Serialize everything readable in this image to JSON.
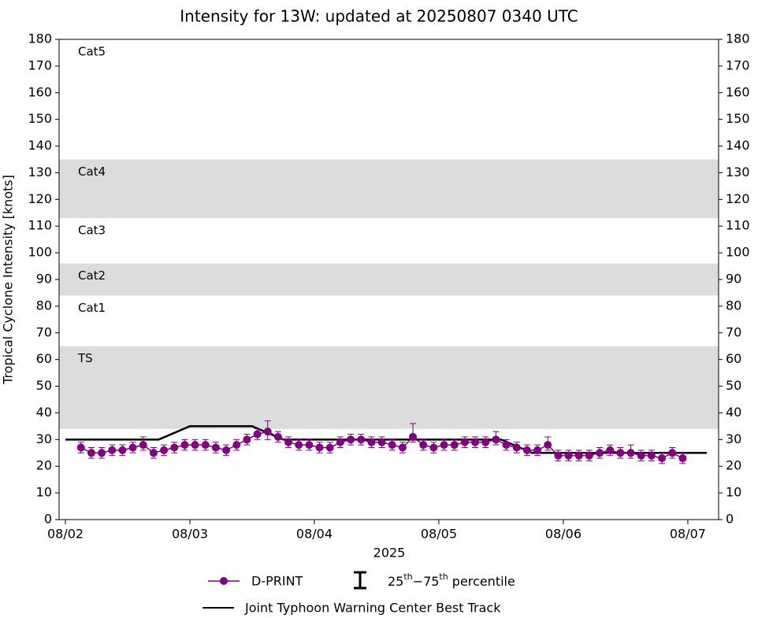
{
  "chart_data": {
    "type": "line",
    "title": "Intensity for 13W: updated at 20250807 0340 UTC",
    "ylabel": "Tropical Cyclone Intensity [knots]",
    "xlabel": "2025",
    "ylim": [
      0,
      180
    ],
    "yticks": [
      0,
      10,
      20,
      30,
      40,
      50,
      60,
      70,
      80,
      90,
      100,
      110,
      120,
      130,
      140,
      150,
      160,
      170,
      180
    ],
    "xlim": [
      "2025-08-01T22:47",
      "2025-08-07T05:56"
    ],
    "xticks": [
      {
        "value": "2025-08-02T00:00",
        "label": "08/02"
      },
      {
        "value": "2025-08-03T00:00",
        "label": "08/03"
      },
      {
        "value": "2025-08-04T00:00",
        "label": "08/04"
      },
      {
        "value": "2025-08-05T00:00",
        "label": "08/05"
      },
      {
        "value": "2025-08-06T00:00",
        "label": "08/06"
      },
      {
        "value": "2025-08-07T00:00",
        "label": "08/07"
      }
    ],
    "bands": [
      {
        "name": "TS",
        "range": [
          34,
          65
        ],
        "shaded": true
      },
      {
        "name": "Cat1",
        "range": [
          65,
          84
        ],
        "shaded": false
      },
      {
        "name": "Cat2",
        "range": [
          84,
          96
        ],
        "shaded": true
      },
      {
        "name": "Cat3",
        "range": [
          96,
          113
        ],
        "shaded": false
      },
      {
        "name": "Cat4",
        "range": [
          113,
          135
        ],
        "shaded": true
      },
      {
        "name": "Cat5",
        "range": [
          135,
          180
        ],
        "shaded": false
      }
    ],
    "band_color": "#dcdcdc",
    "errorbar_legend": [
      "25",
      "th",
      "−75",
      "th",
      " percentile"
    ],
    "series": [
      {
        "name": "D-PRINT",
        "color": "#800080",
        "marker": true,
        "x": [
          "2025-08-02T03:00",
          "2025-08-02T05:00",
          "2025-08-02T07:00",
          "2025-08-02T09:00",
          "2025-08-02T11:00",
          "2025-08-02T13:00",
          "2025-08-02T15:00",
          "2025-08-02T17:00",
          "2025-08-02T19:00",
          "2025-08-02T21:00",
          "2025-08-02T23:00",
          "2025-08-03T01:00",
          "2025-08-03T03:00",
          "2025-08-03T05:00",
          "2025-08-03T07:00",
          "2025-08-03T09:00",
          "2025-08-03T11:00",
          "2025-08-03T13:00",
          "2025-08-03T15:00",
          "2025-08-03T17:00",
          "2025-08-03T19:00",
          "2025-08-03T21:00",
          "2025-08-03T23:00",
          "2025-08-04T01:00",
          "2025-08-04T03:00",
          "2025-08-04T05:00",
          "2025-08-04T07:00",
          "2025-08-04T09:00",
          "2025-08-04T11:00",
          "2025-08-04T13:00",
          "2025-08-04T15:00",
          "2025-08-04T17:00",
          "2025-08-04T19:00",
          "2025-08-04T21:00",
          "2025-08-04T23:00",
          "2025-08-05T01:00",
          "2025-08-05T03:00",
          "2025-08-05T05:00",
          "2025-08-05T07:00",
          "2025-08-05T09:00",
          "2025-08-05T11:00",
          "2025-08-05T13:00",
          "2025-08-05T15:00",
          "2025-08-05T17:00",
          "2025-08-05T19:00",
          "2025-08-05T21:00",
          "2025-08-05T23:00",
          "2025-08-06T01:00",
          "2025-08-06T03:00",
          "2025-08-06T05:00",
          "2025-08-06T07:00",
          "2025-08-06T09:00",
          "2025-08-06T11:00",
          "2025-08-06T13:00",
          "2025-08-06T15:00",
          "2025-08-06T17:00",
          "2025-08-06T19:00",
          "2025-08-06T21:00",
          "2025-08-06T23:00"
        ],
        "values": [
          27,
          25,
          25,
          26,
          26,
          27,
          28,
          25,
          26,
          27,
          28,
          28,
          28,
          27,
          26,
          28,
          30,
          32,
          33,
          31,
          29,
          28,
          28,
          27,
          27,
          29,
          30,
          30,
          29,
          29,
          28,
          27,
          31,
          28,
          27,
          28,
          28,
          29,
          29,
          29,
          30,
          28,
          27,
          26,
          26,
          28,
          24,
          24,
          24,
          24,
          25,
          26,
          25,
          25,
          24,
          24,
          23,
          25,
          23
        ],
        "p25": [
          25,
          23,
          23,
          24,
          24,
          25,
          26,
          23,
          24,
          25,
          26,
          26,
          26,
          25,
          24,
          26,
          28,
          30,
          30,
          29,
          27,
          26,
          26,
          25,
          25,
          27,
          28,
          28,
          27,
          27,
          26,
          25,
          29,
          26,
          25,
          26,
          26,
          27,
          27,
          27,
          28,
          26,
          25,
          24,
          24,
          26,
          22,
          22,
          22,
          22,
          23,
          24,
          23,
          23,
          22,
          22,
          21,
          23,
          21
        ],
        "p75": [
          29,
          27,
          27,
          28,
          28,
          29,
          31,
          27,
          28,
          29,
          30,
          30,
          30,
          29,
          28,
          30,
          32,
          34,
          37,
          33,
          31,
          30,
          30,
          29,
          29,
          31,
          32,
          32,
          31,
          31,
          30,
          29,
          36,
          30,
          29,
          30,
          30,
          31,
          31,
          31,
          33,
          30,
          29,
          28,
          28,
          31,
          26,
          26,
          26,
          26,
          27,
          28,
          27,
          28,
          26,
          26,
          25,
          27,
          25
        ]
      },
      {
        "name": "Joint Typhoon Warning Center Best Track",
        "color": "#000000",
        "marker": false,
        "x": [
          "2025-08-02T00:00",
          "2025-08-02T18:00",
          "2025-08-03T00:00",
          "2025-08-03T12:00",
          "2025-08-03T18:00",
          "2025-08-05T12:00",
          "2025-08-05T18:00",
          "2025-08-07T03:40"
        ],
        "values": [
          30,
          30,
          35,
          35,
          30,
          30,
          25,
          25
        ]
      }
    ]
  }
}
